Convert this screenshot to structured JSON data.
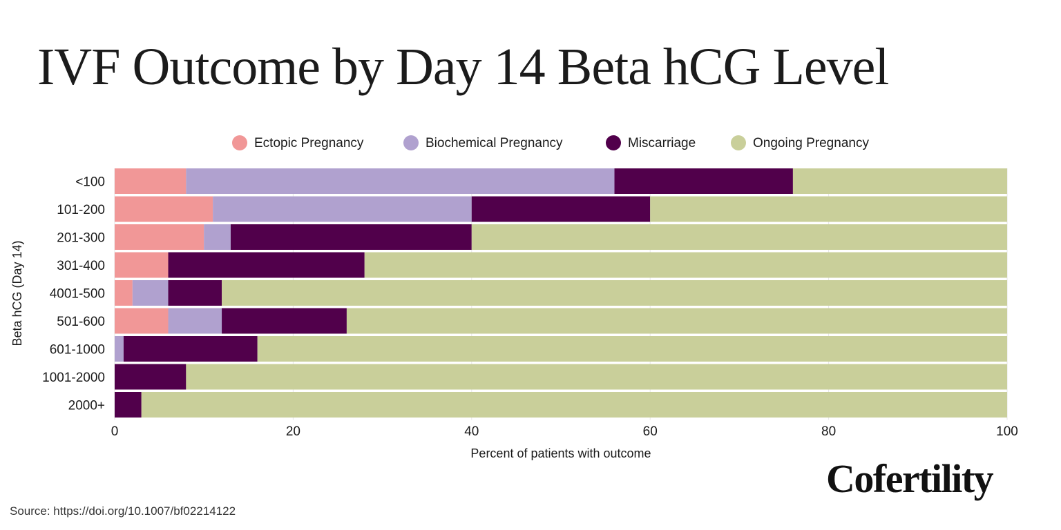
{
  "header": {
    "title": "IVF Outcome by Day 14 Beta hCG Level"
  },
  "footer": {
    "source": "Source: https://doi.org/10.1007/bf02214122"
  },
  "brand": {
    "name": "Cofertility"
  },
  "chart_data": {
    "type": "bar",
    "orientation": "horizontal",
    "stacked": true,
    "title": "IVF Outcome by Day 14 Beta hCG Level",
    "xlabel": "Percent of patients with outcome",
    "ylabel": "Beta hCG (Day 14)",
    "xlim": [
      0,
      100
    ],
    "xticks": [
      0,
      20,
      40,
      60,
      80,
      100
    ],
    "grid": true,
    "legend_position": "top",
    "categories": [
      "<100",
      "101-200",
      "201-300",
      "301-400",
      "4001-500",
      "501-600",
      "601-1000",
      "1001-2000",
      "2000+"
    ],
    "series": [
      {
        "name": "Ectopic Pregnancy",
        "color": "#f19797",
        "values": [
          8,
          11,
          10,
          6,
          2,
          6,
          0,
          0,
          0
        ]
      },
      {
        "name": "Biochemical Pregnancy",
        "color": "#b0a1cf",
        "values": [
          48,
          29,
          3,
          0,
          4,
          6,
          1,
          0,
          0
        ]
      },
      {
        "name": "Miscarriage",
        "color": "#51004b",
        "values": [
          20,
          20,
          27,
          22,
          6,
          14,
          15,
          8,
          3
        ]
      },
      {
        "name": "Ongoing Pregnancy",
        "color": "#c9cf9a",
        "values": [
          24,
          40,
          60,
          72,
          88,
          74,
          84,
          92,
          97
        ]
      }
    ]
  }
}
